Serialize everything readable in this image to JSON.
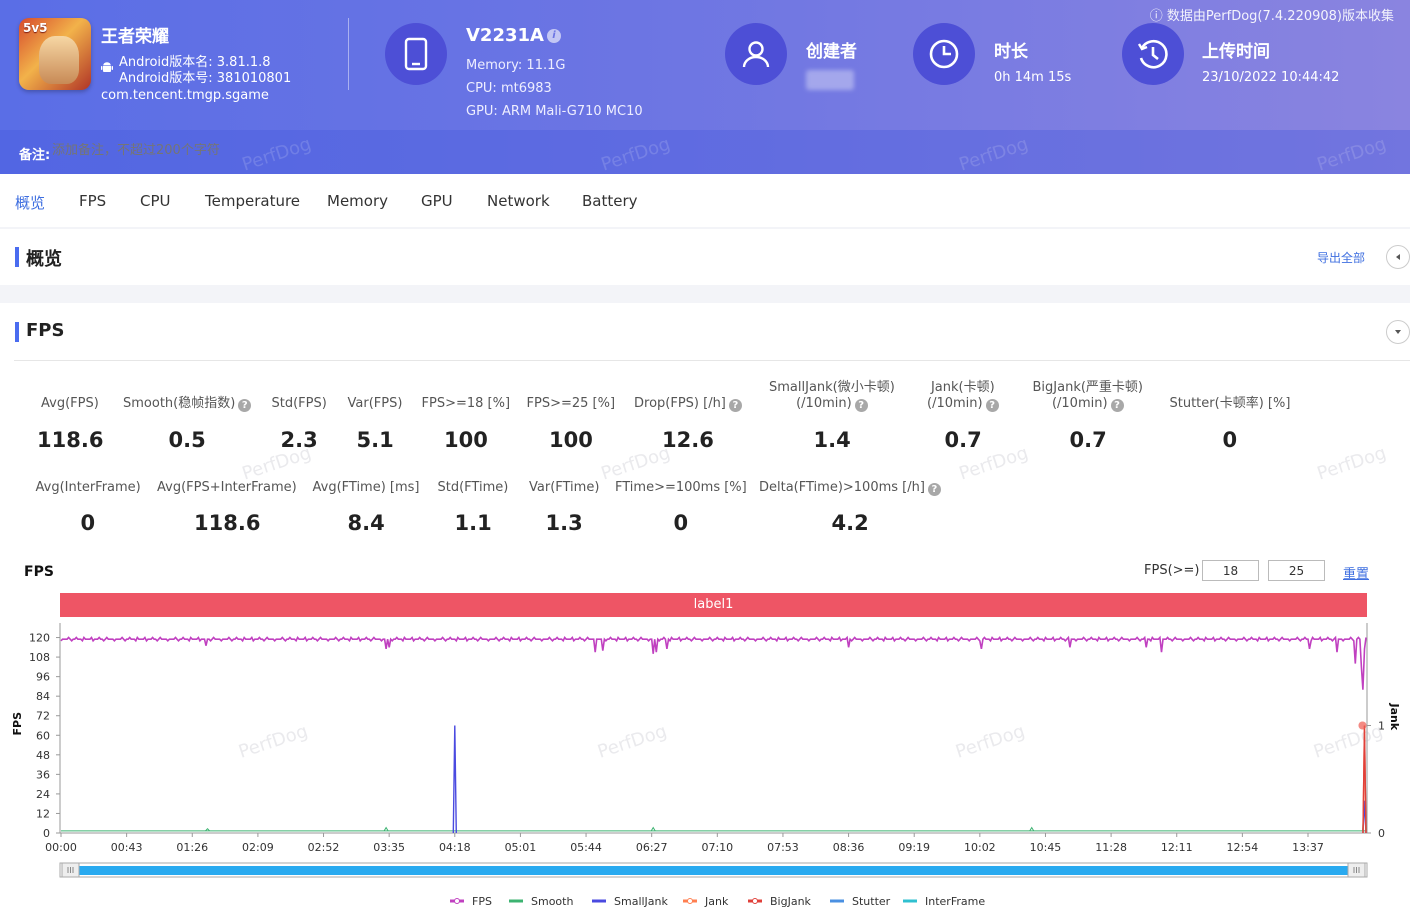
{
  "header": {
    "app_name": "王者荣耀",
    "app_icon_badge": "5v5",
    "version_name": "Android版本名: 3.81.1.8",
    "version_code": "Android版本号: 381010801",
    "package": "com.tencent.tmgp.sgame",
    "device": {
      "name": "V2231A",
      "memory": "Memory: 11.1G",
      "cpu": "CPU: mt6983",
      "gpu": "GPU: ARM Mali-G710 MC10"
    },
    "creator_label": "创建者",
    "duration_label": "时长",
    "duration_value": "0h 14m 15s",
    "upload_label": "上传时间",
    "upload_value": "23/10/2022 10:44:42",
    "source_note": "数据由PerfDog(7.4.220908)版本收集",
    "remark_label": "备注:",
    "remark_placeholder": "添加备注，不超过200个字符",
    "watermark": "PerfDog"
  },
  "tabs": [
    "概览",
    "FPS",
    "CPU",
    "Temperature",
    "Memory",
    "GPU",
    "Network",
    "Battery"
  ],
  "overview": {
    "title": "概览",
    "export_label": "导出全部"
  },
  "fps_section": {
    "title": "FPS",
    "metrics_row1": [
      {
        "label": "Avg(FPS)",
        "value": "118.6",
        "help": false
      },
      {
        "label": "Smooth(稳帧指数)",
        "value": "0.5",
        "help": true
      },
      {
        "label": "Std(FPS)",
        "value": "2.3",
        "help": false
      },
      {
        "label": "Var(FPS)",
        "value": "5.1",
        "help": false
      },
      {
        "label": "FPS>=18 [%]",
        "value": "100",
        "help": false
      },
      {
        "label": "FPS>=25 [%]",
        "value": "100",
        "help": false
      },
      {
        "label": "Drop(FPS) [/h]",
        "value": "12.6",
        "help": true
      },
      {
        "label": "SmallJank(微小卡顿)",
        "label2": "(/10min)",
        "value": "1.4",
        "help": true
      },
      {
        "label": "Jank(卡顿)",
        "label2": "(/10min)",
        "value": "0.7",
        "help": true
      },
      {
        "label": "BigJank(严重卡顿)",
        "label2": "(/10min)",
        "value": "0.7",
        "help": true
      },
      {
        "label": "Stutter(卡顿率) [%]",
        "value": "0",
        "help": false
      }
    ],
    "metrics_row2": [
      {
        "label": "Avg(InterFrame)",
        "value": "0",
        "help": false
      },
      {
        "label": "Avg(FPS+InterFrame)",
        "value": "118.6",
        "help": false
      },
      {
        "label": "Avg(FTime) [ms]",
        "value": "8.4",
        "help": false
      },
      {
        "label": "Std(FTime)",
        "value": "1.1",
        "help": false
      },
      {
        "label": "Var(FTime)",
        "value": "1.3",
        "help": false
      },
      {
        "label": "FTime>=100ms [%]",
        "value": "0",
        "help": false
      },
      {
        "label": "Delta(FTime)>100ms [/h]",
        "value": "4.2",
        "help": true
      }
    ],
    "chart_title": "FPS",
    "threshold_label": "FPS(>=)",
    "threshold1": "18",
    "threshold2": "25",
    "reset_label": "重置",
    "band_label": "label1"
  },
  "chart_data": {
    "type": "line",
    "x_tick_labels": [
      "00:00",
      "00:43",
      "01:26",
      "02:09",
      "02:52",
      "03:35",
      "04:18",
      "05:01",
      "05:44",
      "06:27",
      "07:10",
      "07:53",
      "08:36",
      "09:19",
      "10:02",
      "10:45",
      "11:28",
      "12:11",
      "12:54",
      "13:37"
    ],
    "x_range_seconds": [
      0,
      855
    ],
    "y_left_label": "FPS",
    "y_left_ticks": [
      0,
      12,
      24,
      36,
      48,
      60,
      72,
      84,
      96,
      108,
      120,
      132
    ],
    "y_left_range": [
      0,
      132
    ],
    "y_right_label": "Jank",
    "y_right_ticks": [
      0,
      1,
      2
    ],
    "y_right_range": [
      0,
      2
    ],
    "series": [
      {
        "name": "FPS",
        "color": "#c040c0",
        "axis": "left",
        "baseline": 119,
        "dips": [
          [
            95,
            115
          ],
          [
            213,
            113
          ],
          [
            215,
            114
          ],
          [
            350,
            111
          ],
          [
            355,
            112
          ],
          [
            388,
            110
          ],
          [
            390,
            111
          ],
          [
            397,
            113
          ],
          [
            516,
            114
          ],
          [
            603,
            113
          ],
          [
            661,
            114
          ],
          [
            711,
            114
          ],
          [
            721,
            111
          ],
          [
            818,
            113
          ],
          [
            836,
            111
          ],
          [
            848,
            104
          ],
          [
            852,
            102
          ],
          [
            853,
            88
          ],
          [
            854,
            113
          ]
        ]
      },
      {
        "name": "Smooth",
        "color": "#3cb371",
        "axis": "right",
        "baseline": 0.02,
        "spikes": [
          [
            96,
            0.04
          ],
          [
            213,
            0.05
          ],
          [
            388,
            0.05
          ],
          [
            636,
            0.05
          ],
          [
            854,
            0.3
          ]
        ]
      },
      {
        "name": "SmallJank",
        "color": "#4a4ae0",
        "axis": "right",
        "spikes": [
          [
            258,
            1
          ],
          [
            854,
            0.3
          ]
        ]
      },
      {
        "name": "Jank",
        "color": "#ff7f50",
        "axis": "right",
        "spikes": [
          [
            854,
            1
          ]
        ]
      },
      {
        "name": "BigJank",
        "color": "#e0403a",
        "axis": "right",
        "spikes": [
          [
            854,
            1
          ]
        ]
      },
      {
        "name": "Stutter",
        "color": "#4a90e2",
        "axis": "right",
        "spikes": []
      },
      {
        "name": "InterFrame",
        "color": "#30c0d0",
        "axis": "right",
        "spikes": []
      }
    ]
  }
}
